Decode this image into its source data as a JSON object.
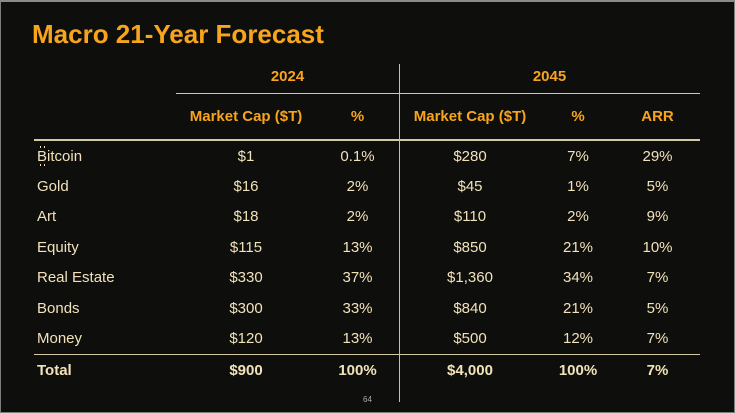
{
  "slide": {
    "title": "Macro 21-Year Forecast",
    "page_number": "64",
    "colors": {
      "background": "#0E0E0D",
      "accent_orange": "#F7A51D",
      "body_text_cream": "#F2E2BA",
      "rule_line": "#D6C9A3"
    }
  },
  "table": {
    "group_headers": [
      {
        "label": "2024"
      },
      {
        "label": "2045"
      }
    ],
    "columns_2024": [
      "Market Cap ($T)",
      "%"
    ],
    "columns_2045": [
      "Market Cap ($T)",
      "%",
      "ARR"
    ],
    "rows": [
      {
        "label": "₿itcoin",
        "mc_2024": "$1",
        "pct_2024": "0.1%",
        "mc_2045": "$280",
        "pct_2045": "7%",
        "arr": "29%"
      },
      {
        "label": "Gold",
        "mc_2024": "$16",
        "pct_2024": "2%",
        "mc_2045": "$45",
        "pct_2045": "1%",
        "arr": "5%"
      },
      {
        "label": "Art",
        "mc_2024": "$18",
        "pct_2024": "2%",
        "mc_2045": "$110",
        "pct_2045": "2%",
        "arr": "9%"
      },
      {
        "label": "Equity",
        "mc_2024": "$115",
        "pct_2024": "13%",
        "mc_2045": "$850",
        "pct_2045": "21%",
        "arr": "10%"
      },
      {
        "label": "Real Estate",
        "mc_2024": "$330",
        "pct_2024": "37%",
        "mc_2045": "$1,360",
        "pct_2045": "34%",
        "arr": "7%"
      },
      {
        "label": "Bonds",
        "mc_2024": "$300",
        "pct_2024": "33%",
        "mc_2045": "$840",
        "pct_2045": "21%",
        "arr": "5%"
      },
      {
        "label": "Money",
        "mc_2024": "$120",
        "pct_2024": "13%",
        "mc_2045": "$500",
        "pct_2045": "12%",
        "arr": "7%"
      }
    ],
    "total": {
      "label": "Total",
      "mc_2024": "$900",
      "pct_2024": "100%",
      "mc_2045": "$4,000",
      "pct_2045": "100%",
      "arr": "7%"
    }
  }
}
